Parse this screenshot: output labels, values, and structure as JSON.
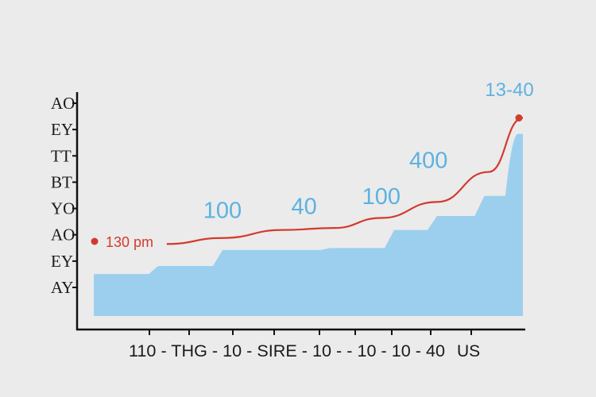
{
  "chart_data": {
    "type": "area",
    "title": "",
    "xlabel": "",
    "ylabel": "",
    "colors": {
      "area": "#9ccfee",
      "line": "#d33a2e",
      "labels": "#5cb2e2",
      "axis": "#111111",
      "background": "#ebebeb"
    },
    "y_tick_labels": [
      "AY",
      "EY",
      "AO",
      "YO",
      "BT",
      "TT",
      "EY",
      "AO"
    ],
    "x_tick_labels": [
      "110 - THG - 10 - SIRE - 10 - - 10 - 10 - 40",
      "US"
    ],
    "xlim": [
      0,
      10
    ],
    "ylim": [
      0,
      10
    ],
    "series": [
      {
        "name": "area",
        "type": "step-area",
        "x": [
          0,
          1.5,
          3,
          5.5,
          7,
          8,
          9.1,
          10
        ],
        "y": [
          2.1,
          2.5,
          3.3,
          3.4,
          4.3,
          5,
          6,
          9.1
        ]
      },
      {
        "name": "line",
        "type": "line",
        "x": [
          0,
          1.7,
          3,
          4.4,
          5.6,
          6.7,
          8,
          9.2,
          10
        ],
        "y": [
          3.6,
          3.6,
          3.9,
          4.3,
          4.4,
          4.9,
          5.7,
          7.2,
          9.9
        ]
      }
    ],
    "start_label": {
      "text": "130 pm",
      "x": 0,
      "y": 3.6
    },
    "data_labels": [
      {
        "text": "100",
        "x": 3,
        "y": 4.9
      },
      {
        "text": "40",
        "x": 4.9,
        "y": 5.1
      },
      {
        "text": "100",
        "x": 6.7,
        "y": 5.6
      },
      {
        "text": "400",
        "x": 7.8,
        "y": 7.4
      },
      {
        "text": "13-40",
        "x": 9.9,
        "y": 11.2
      }
    ]
  }
}
